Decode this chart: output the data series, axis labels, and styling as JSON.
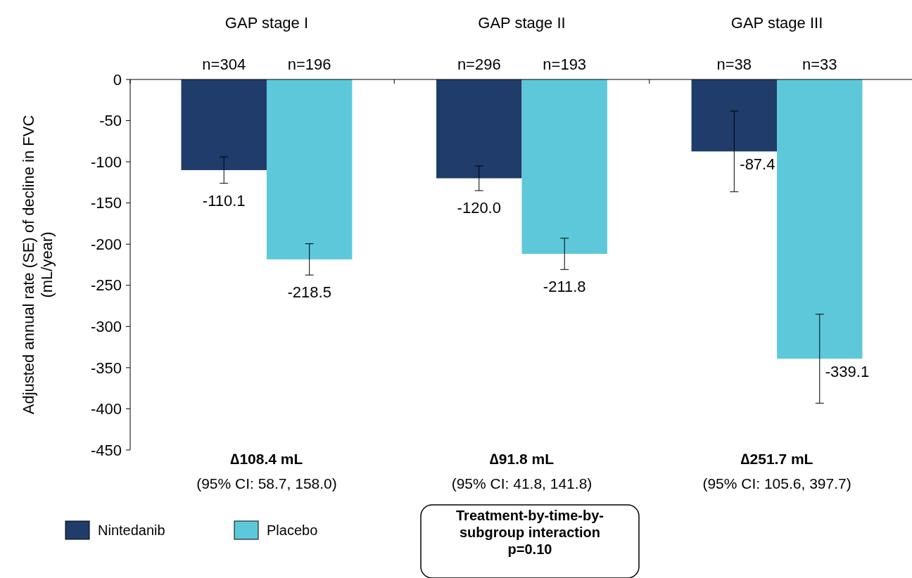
{
  "chart_data": {
    "type": "bar",
    "categories": [
      "GAP stage I",
      "GAP stage II",
      "GAP stage III"
    ],
    "ylabel": "Adjusted annual rate (SE) of decline in FVC (mL/year)",
    "series": [
      {
        "name": "Nintedanib",
        "color": "#1f3c6a",
        "values": [
          -110.1,
          -120.0,
          -87.4
        ],
        "errors": [
          16,
          15,
          49
        ],
        "value_labels": [
          "-110.1",
          "-120.0",
          "-87.4"
        ]
      },
      {
        "name": "Placebo",
        "color": "#5ec8db",
        "values": [
          -218.5,
          -211.8,
          -339.1
        ],
        "errors": [
          19,
          19,
          54
        ],
        "value_labels": [
          "-218.5",
          "-211.8",
          "-339.1"
        ]
      }
    ],
    "ylim": [
      -450,
      0
    ],
    "yticks": [
      0,
      -50,
      -100,
      -150,
      -200,
      -250,
      -300,
      -350,
      -400,
      -450
    ],
    "legend": "bottom left",
    "grid": false,
    "annotations": [
      {
        "text": "n=304",
        "x": "GAP stage I",
        "y": 0
      },
      {
        "text": "n=196",
        "x": "GAP stage I",
        "y": 0
      },
      {
        "text": "n=296",
        "x": "GAP stage II",
        "y": 0
      },
      {
        "text": "n=193",
        "x": "GAP stage II",
        "y": 0
      },
      {
        "text": "n=38",
        "x": "GAP stage III",
        "y": 0
      },
      {
        "text": "n=33",
        "x": "GAP stage III",
        "y": 0
      },
      "∆108.4 mL",
      "(95% CI: 58.7, 158.0)",
      "∆91.8 mL",
      "(95% CI: 41.8, 141.8)",
      "∆251.7 mL",
      "(95% CI: 105.6, 397.7)",
      "Treatment-by-time-by-subgroup interaction p=0.10"
    ]
  }
}
